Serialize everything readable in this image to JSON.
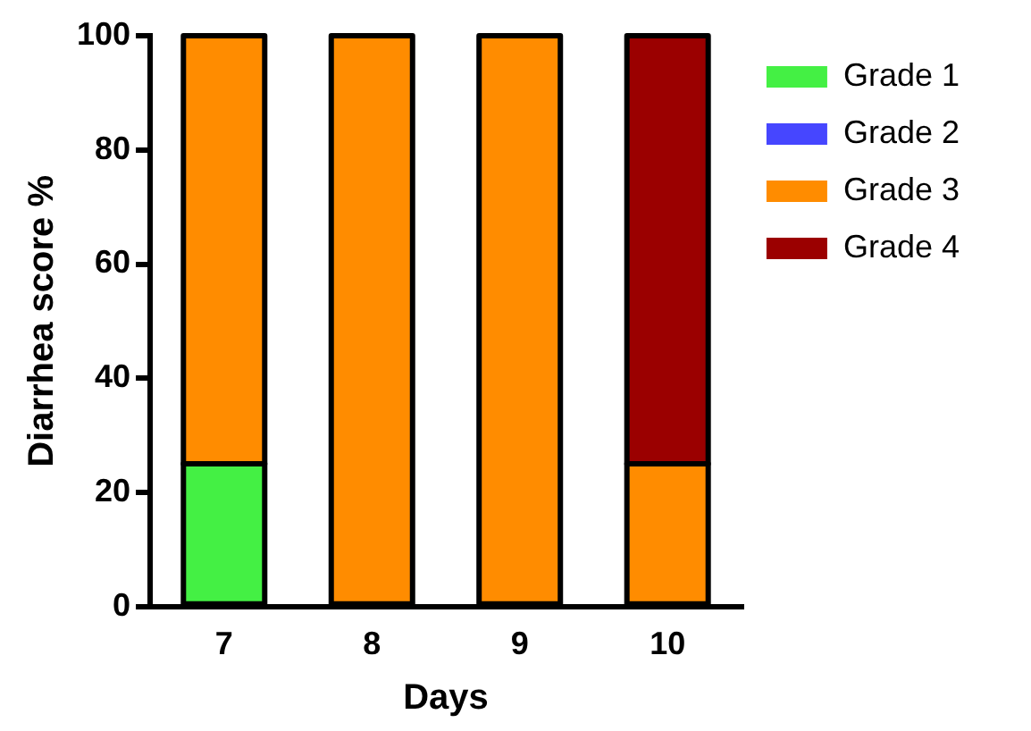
{
  "chart_data": {
    "type": "bar",
    "stacked": true,
    "xlabel": "Days",
    "ylabel": "Diarrhea score %",
    "categories": [
      "7",
      "8",
      "9",
      "10"
    ],
    "series": [
      {
        "name": "Grade 1",
        "color": "#44f044",
        "values": [
          25,
          0,
          0,
          0
        ]
      },
      {
        "name": "Grade 2",
        "color": "#4646ff",
        "values": [
          0,
          0,
          0,
          0
        ]
      },
      {
        "name": "Grade 3",
        "color": "#ff8c00",
        "values": [
          75,
          100,
          100,
          25
        ]
      },
      {
        "name": "Grade 4",
        "color": "#9b0000",
        "values": [
          0,
          0,
          0,
          75
        ]
      }
    ],
    "ylim": [
      0,
      100
    ],
    "yticks": [
      0,
      20,
      40,
      60,
      80,
      100
    ],
    "grid": false,
    "legend": "right top"
  }
}
